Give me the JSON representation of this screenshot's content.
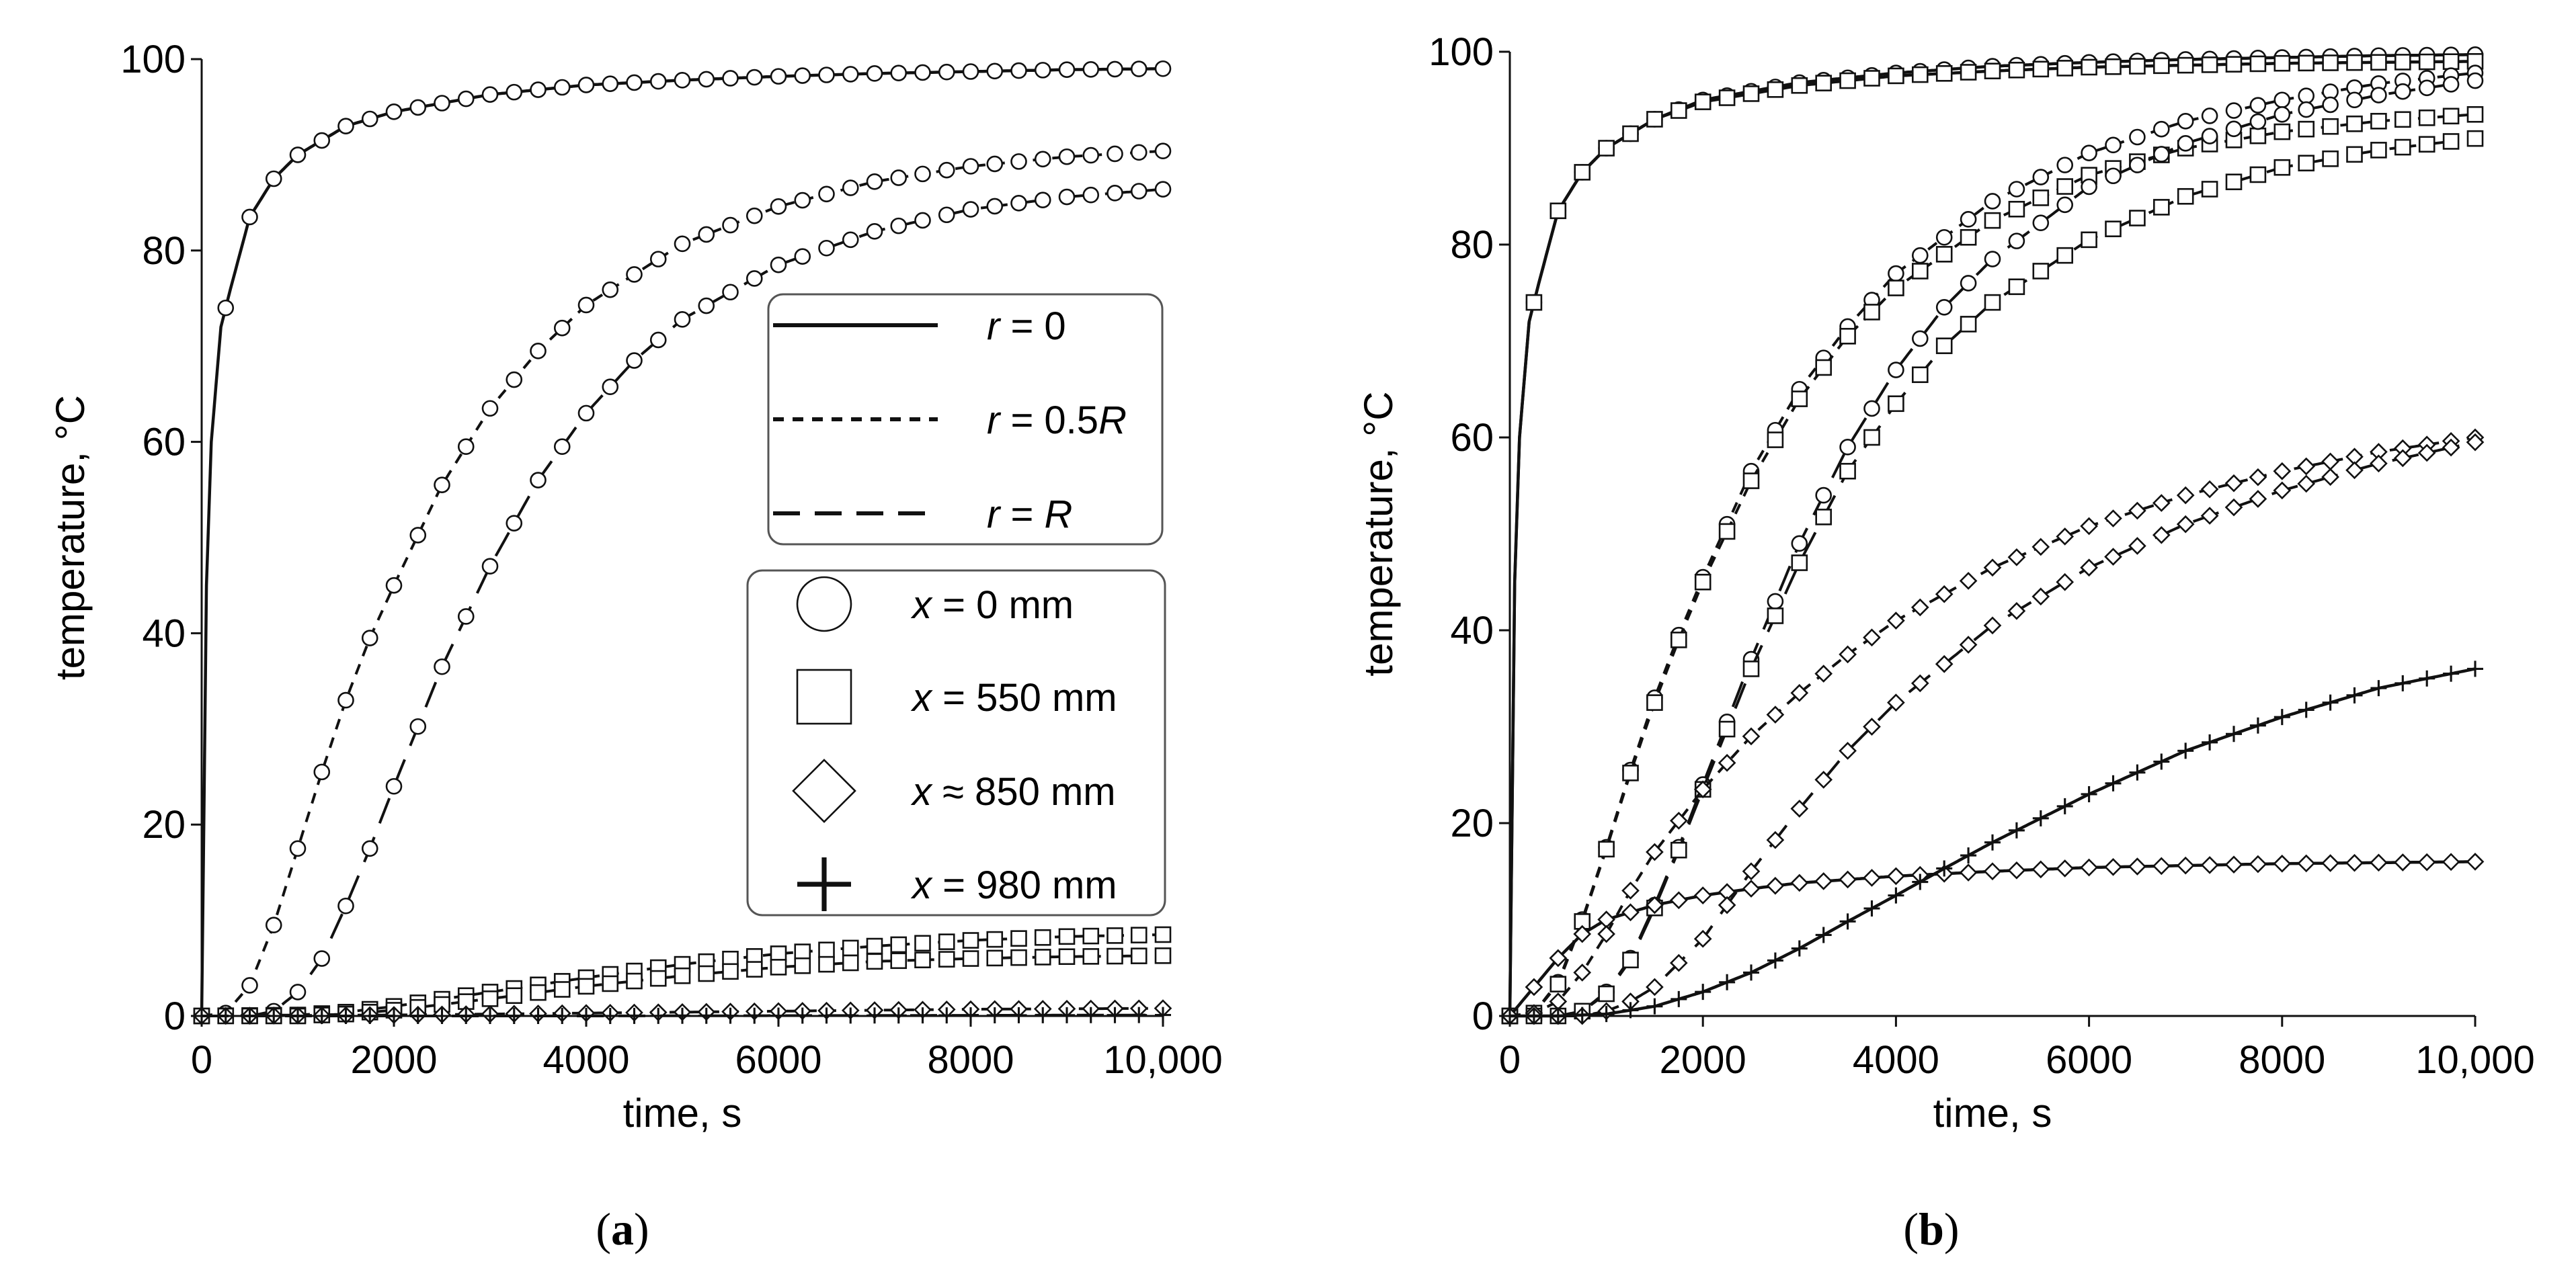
{
  "chart_data": [
    {
      "type": "line",
      "panel_label": "a",
      "xlabel": "time, s",
      "ylabel": "temperature, °C",
      "xlim": [
        0,
        10000
      ],
      "ylim": [
        0,
        100
      ],
      "xticks": [
        0,
        2000,
        4000,
        6000,
        8000,
        10000
      ],
      "xtick_labels": [
        "0",
        "2000",
        "4000",
        "6000",
        "8000",
        "10,000"
      ],
      "yticks": [
        0,
        20,
        40,
        60,
        80,
        100
      ],
      "ytick_labels": [
        "0",
        "20",
        "40",
        "60",
        "80",
        "100"
      ],
      "series": [
        {
          "name": "r = 0, x = 0 mm",
          "line": "solid",
          "marker": "circle",
          "x": [
            0,
            50,
            100,
            200,
            300,
            500,
            750,
            1000,
            1500,
            2000,
            3000,
            4000,
            5000,
            6000,
            7000,
            8000,
            9000,
            10000
          ],
          "y": [
            0,
            45,
            60,
            72,
            76,
            83.5,
            87.5,
            90,
            93,
            94.5,
            96.3,
            97.3,
            97.8,
            98.2,
            98.5,
            98.7,
            98.9,
            99
          ]
        },
        {
          "name": "r = 0.5R, x = 0 mm",
          "line": "dotted",
          "marker": "circle",
          "x": [
            0,
            250,
            500,
            750,
            1000,
            1250,
            1500,
            1750,
            2000,
            2500,
            3000,
            3500,
            4000,
            5000,
            6000,
            7000,
            8000,
            9000,
            10000
          ],
          "y": [
            0,
            0.3,
            3.2,
            9.5,
            17.5,
            25.5,
            33,
            39.5,
            45,
            55.5,
            63.5,
            69.5,
            74.3,
            80.7,
            84.6,
            87.2,
            88.8,
            89.8,
            90.4
          ]
        },
        {
          "name": "r = R, x = 0 mm",
          "line": "dashed",
          "marker": "circle",
          "x": [
            0,
            500,
            750,
            1000,
            1250,
            1500,
            1750,
            2000,
            2500,
            3000,
            3500,
            4000,
            4500,
            5000,
            6000,
            7000,
            8000,
            9000,
            10000
          ],
          "y": [
            0,
            0,
            0.5,
            2.5,
            6,
            11.5,
            17.5,
            24,
            36.5,
            47,
            56,
            63,
            68.5,
            72.8,
            78.5,
            82,
            84.3,
            85.6,
            86.4
          ]
        },
        {
          "name": "r = 0.5R, x = 550 mm",
          "line": "dotted",
          "marker": "square",
          "x": [
            0,
            1000,
            1500,
            2000,
            3000,
            4000,
            5000,
            6000,
            7000,
            8000,
            9000,
            10000
          ],
          "y": [
            0,
            0.1,
            0.4,
            1,
            2.5,
            4,
            5.4,
            6.5,
            7.3,
            7.9,
            8.3,
            8.5
          ]
        },
        {
          "name": "r = R, x = 550 mm",
          "line": "dashed",
          "marker": "square",
          "x": [
            0,
            1000,
            1500,
            2000,
            3000,
            4000,
            5000,
            6000,
            7000,
            8000,
            9000,
            10000
          ],
          "y": [
            0,
            0,
            0.2,
            0.6,
            1.8,
            3.1,
            4.2,
            5.1,
            5.7,
            6,
            6.2,
            6.3
          ]
        },
        {
          "name": "r = 0.5R, x ≈ 850 mm",
          "line": "dotted",
          "marker": "diamond",
          "x": [
            0,
            2000,
            4000,
            6000,
            8000,
            10000
          ],
          "y": [
            0,
            0.1,
            0.3,
            0.5,
            0.7,
            0.8
          ]
        },
        {
          "name": "r = R, x = 980 mm",
          "line": "dashed",
          "marker": "plus",
          "x": [
            0,
            4000,
            10000
          ],
          "y": [
            0,
            0,
            0.1
          ]
        }
      ],
      "legend_lines": [
        {
          "style": "solid",
          "label": "r = 0"
        },
        {
          "style": "dotted",
          "label": "r = 0.5R"
        },
        {
          "style": "dashed",
          "label": "r = R"
        }
      ],
      "legend_markers": [
        {
          "marker": "circle",
          "label": "x = 0 mm"
        },
        {
          "marker": "square",
          "label": "x = 550 mm"
        },
        {
          "marker": "diamond",
          "label": "x ≈ 850 mm"
        },
        {
          "marker": "plus",
          "label": "x = 980 mm"
        }
      ]
    },
    {
      "type": "line",
      "panel_label": "b",
      "xlabel": "time, s",
      "ylabel": "temperature, °C",
      "xlim": [
        0,
        10000
      ],
      "ylim": [
        0,
        100
      ],
      "xticks": [
        0,
        2000,
        4000,
        6000,
        8000,
        10000
      ],
      "xtick_labels": [
        "0",
        "2000",
        "4000",
        "6000",
        "8000",
        "10,000"
      ],
      "yticks": [
        0,
        20,
        40,
        60,
        80,
        100
      ],
      "ytick_labels": [
        "0",
        "20",
        "40",
        "60",
        "80",
        "100"
      ],
      "series": [
        {
          "name": "r = 0, x = 0 mm",
          "line": "solid",
          "marker": "circle",
          "x": [
            0,
            50,
            100,
            200,
            300,
            500,
            750,
            1000,
            1500,
            2000,
            3000,
            4000,
            5000,
            6000,
            7000,
            8000,
            9000,
            10000
          ],
          "y": [
            0,
            45,
            60,
            72,
            76,
            83.5,
            87.5,
            90,
            93,
            95,
            96.8,
            97.8,
            98.5,
            98.9,
            99.2,
            99.4,
            99.6,
            99.7
          ]
        },
        {
          "name": "r = 0, x = 550 mm",
          "line": "solid",
          "marker": "square",
          "x": [
            0,
            50,
            100,
            200,
            300,
            500,
            750,
            1000,
            1500,
            2000,
            3000,
            4000,
            5000,
            6000,
            7000,
            8000,
            9000,
            10000
          ],
          "y": [
            0,
            45,
            60,
            72,
            76,
            83.5,
            87.5,
            90,
            93,
            94.8,
            96.5,
            97.5,
            98,
            98.4,
            98.6,
            98.8,
            98.9,
            99
          ]
        },
        {
          "name": "r = 0.5R, x = 0 mm",
          "line": "dotted",
          "marker": "circle",
          "x": [
            0,
            250,
            500,
            750,
            1000,
            1250,
            1500,
            1750,
            2000,
            2500,
            3000,
            3500,
            4000,
            5000,
            6000,
            7000,
            8000,
            9000,
            10000
          ],
          "y": [
            0,
            0.3,
            3.5,
            10,
            17.5,
            25.5,
            33,
            39.5,
            45.5,
            56.5,
            65,
            71.5,
            77,
            84.5,
            89.5,
            92.8,
            95,
            96.7,
            97.8
          ]
        },
        {
          "name": "r = 0.5R, x = 550 mm",
          "line": "dotted",
          "marker": "square",
          "x": [
            0,
            250,
            500,
            750,
            1000,
            1250,
            1500,
            1750,
            2000,
            2500,
            3000,
            3500,
            4000,
            5000,
            6000,
            7000,
            8000,
            9000,
            10000
          ],
          "y": [
            0,
            0.3,
            3.3,
            9.8,
            17.3,
            25.2,
            32.5,
            39,
            45,
            55.5,
            64,
            70.5,
            75.5,
            82.5,
            87.2,
            90,
            91.7,
            92.8,
            93.5
          ]
        },
        {
          "name": "r = R, x = 0 mm",
          "line": "dashed",
          "marker": "circle",
          "x": [
            0,
            500,
            750,
            1000,
            1250,
            1500,
            1750,
            2000,
            2500,
            3000,
            3500,
            4000,
            4500,
            5000,
            6000,
            7000,
            8000,
            9000,
            10000
          ],
          "y": [
            0,
            0,
            0.5,
            2.5,
            6,
            11.5,
            17.5,
            24,
            37,
            49,
            59,
            67,
            73.5,
            78.5,
            86,
            90.5,
            93.5,
            95.5,
            97
          ]
        },
        {
          "name": "r = R, x = 550 mm",
          "line": "dashed",
          "marker": "square",
          "x": [
            0,
            500,
            750,
            1000,
            1250,
            1500,
            1750,
            2000,
            2500,
            3000,
            3500,
            4000,
            4500,
            5000,
            6000,
            7000,
            8000,
            9000,
            10000
          ],
          "y": [
            0,
            0,
            0.5,
            2.3,
            5.8,
            11.2,
            17.2,
            23.5,
            36,
            47,
            56.5,
            63.5,
            69.5,
            74,
            80.5,
            85,
            88,
            89.8,
            91
          ]
        },
        {
          "name": "r = 0, x ≈ 850 mm",
          "line": "solid",
          "marker": "diamond",
          "x": [
            0,
            250,
            500,
            750,
            1000,
            1500,
            2000,
            2500,
            3000,
            4000,
            5000,
            6000,
            7000,
            8000,
            9000,
            10000
          ],
          "y": [
            0,
            3,
            6,
            8.5,
            10,
            11.5,
            12.5,
            13.2,
            13.8,
            14.5,
            15,
            15.4,
            15.6,
            15.8,
            15.9,
            16
          ]
        },
        {
          "name": "r = 0.5R, x ≈ 850 mm",
          "line": "dotted",
          "marker": "diamond",
          "x": [
            0,
            250,
            500,
            750,
            1000,
            1250,
            1500,
            2000,
            2500,
            3000,
            3500,
            4000,
            5000,
            6000,
            7000,
            8000,
            9000,
            10000
          ],
          "y": [
            0,
            0.3,
            1.5,
            4.5,
            8.5,
            13,
            17,
            23.5,
            29,
            33.5,
            37.5,
            41,
            46.5,
            50.8,
            54,
            56.5,
            58.5,
            60
          ]
        },
        {
          "name": "r = R, x ≈ 850 mm",
          "line": "dashed",
          "marker": "diamond",
          "x": [
            0,
            750,
            1000,
            1250,
            1500,
            2000,
            2500,
            3000,
            3500,
            4000,
            5000,
            6000,
            7000,
            8000,
            9000,
            10000
          ],
          "y": [
            0,
            0,
            0.5,
            1.5,
            3,
            8,
            15,
            21.5,
            27.5,
            32.5,
            40.5,
            46.5,
            51,
            54.5,
            57.3,
            59.5
          ]
        },
        {
          "name": "r = R, x = 980 mm",
          "line": "solid",
          "marker": "plus",
          "x": [
            0,
            500,
            1000,
            1500,
            2000,
            2500,
            3000,
            3500,
            4000,
            4500,
            5000,
            6000,
            7000,
            8000,
            9000,
            10000
          ],
          "y": [
            0,
            0,
            0.2,
            1,
            2.5,
            4.5,
            7,
            9.8,
            12.5,
            15.3,
            18,
            23,
            27.5,
            31,
            34,
            36
          ]
        }
      ]
    }
  ]
}
